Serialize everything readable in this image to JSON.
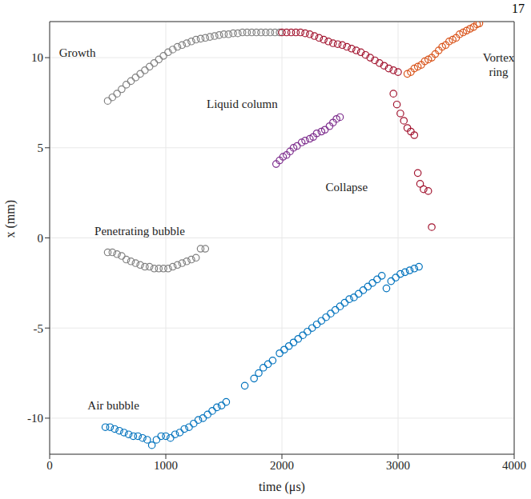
{
  "page_number": "17",
  "chart_data": {
    "type": "scatter",
    "x_label": "time (μs)",
    "y_label": "x (mm)",
    "xlim": [
      0,
      4000
    ],
    "xticks": [
      0,
      1000,
      2000,
      3000,
      4000
    ],
    "ylim": [
      -12,
      12
    ],
    "yticks": [
      -10,
      -5,
      0,
      5,
      10
    ],
    "grid": true,
    "marker": "circle",
    "series": [
      {
        "name": "Growth",
        "color": "#808080",
        "x": [
          500,
          540,
          580,
          620,
          660,
          700,
          740,
          780,
          820,
          860,
          900,
          940,
          980,
          1020,
          1060,
          1100,
          1140,
          1180,
          1220,
          1260,
          1300,
          1340,
          1380,
          1420,
          1460,
          1500,
          1540,
          1580,
          1620,
          1660,
          1700,
          1740,
          1780,
          1820,
          1860,
          1900,
          1940,
          1980
        ],
        "values": [
          7.6,
          7.8,
          8.0,
          8.25,
          8.5,
          8.7,
          8.9,
          9.1,
          9.3,
          9.5,
          9.7,
          9.9,
          10.1,
          10.3,
          10.45,
          10.6,
          10.7,
          10.8,
          10.9,
          11.0,
          11.05,
          11.1,
          11.15,
          11.2,
          11.25,
          11.3,
          11.3,
          11.35,
          11.35,
          11.4,
          11.4,
          11.4,
          11.4,
          11.4,
          11.4,
          11.4,
          11.4,
          11.4
        ]
      },
      {
        "name": "Collapse",
        "color": "#a2142f",
        "x": [
          2000,
          2040,
          2080,
          2120,
          2160,
          2200,
          2240,
          2280,
          2320,
          2360,
          2400,
          2440,
          2480,
          2520,
          2560,
          2600,
          2640,
          2680,
          2720,
          2760,
          2800,
          2840,
          2880,
          2920,
          2960,
          3000,
          2960,
          2990,
          3020,
          3050,
          3080,
          3110,
          3140,
          3170,
          3190,
          3220,
          3260,
          3290
        ],
        "values": [
          11.4,
          11.4,
          11.4,
          11.4,
          11.4,
          11.35,
          11.3,
          11.2,
          11.1,
          11.0,
          10.9,
          10.8,
          10.75,
          10.7,
          10.6,
          10.5,
          10.4,
          10.3,
          10.15,
          10.0,
          9.85,
          9.7,
          9.55,
          9.4,
          9.3,
          9.2,
          8.0,
          7.4,
          6.9,
          6.5,
          6.1,
          5.9,
          5.7,
          3.6,
          3.0,
          2.7,
          2.6,
          0.6
        ]
      },
      {
        "name": "Liquid column",
        "color": "#7e2f8e",
        "x": [
          1950,
          1980,
          2010,
          2040,
          2070,
          2100,
          2130,
          2170,
          2200,
          2240,
          2270,
          2300,
          2340,
          2370,
          2410,
          2440,
          2470,
          2500
        ],
        "values": [
          4.1,
          4.3,
          4.5,
          4.6,
          4.8,
          5.0,
          5.1,
          5.3,
          5.4,
          5.5,
          5.6,
          5.8,
          5.9,
          6.0,
          6.2,
          6.4,
          6.6,
          6.7
        ]
      },
      {
        "name": "Vortex ring",
        "color": "#d95319",
        "x": [
          3080,
          3110,
          3140,
          3170,
          3200,
          3230,
          3260,
          3290,
          3320,
          3350,
          3380,
          3410,
          3440,
          3470,
          3500,
          3530,
          3560,
          3590,
          3620,
          3650,
          3680,
          3700
        ],
        "values": [
          9.1,
          9.2,
          9.4,
          9.5,
          9.6,
          9.8,
          9.9,
          10.0,
          10.2,
          10.4,
          10.6,
          10.7,
          10.9,
          11.0,
          11.1,
          11.3,
          11.4,
          11.5,
          11.6,
          11.7,
          11.85,
          11.9
        ]
      },
      {
        "name": "Penetrating bubble",
        "color": "#808080",
        "x": [
          500,
          540,
          580,
          620,
          660,
          700,
          740,
          780,
          820,
          860,
          900,
          940,
          980,
          1020,
          1060,
          1100,
          1140,
          1180,
          1220,
          1260,
          1300,
          1340
        ],
        "values": [
          -0.8,
          -0.8,
          -0.9,
          -1.0,
          -1.2,
          -1.3,
          -1.4,
          -1.5,
          -1.6,
          -1.6,
          -1.7,
          -1.7,
          -1.7,
          -1.7,
          -1.6,
          -1.5,
          -1.4,
          -1.3,
          -1.2,
          -1.1,
          -0.6,
          -0.6
        ]
      },
      {
        "name": "Air bubble",
        "color": "#0072bd",
        "x": [
          480,
          520,
          560,
          600,
          640,
          680,
          720,
          760,
          800,
          840,
          880,
          920,
          960,
          1000,
          1040,
          1080,
          1120,
          1160,
          1200,
          1240,
          1280,
          1320,
          1360,
          1400,
          1440,
          1480,
          1520,
          1680,
          1760,
          1800,
          1840,
          1880,
          1920,
          1980,
          2020,
          2060,
          2100,
          2140,
          2180,
          2220,
          2260,
          2300,
          2340,
          2380,
          2420,
          2460,
          2500,
          2540,
          2580,
          2620,
          2660,
          2700,
          2740,
          2780,
          2820,
          2860,
          2900,
          2940,
          2980,
          3020,
          3060,
          3100,
          3140,
          3180
        ],
        "values": [
          -10.5,
          -10.5,
          -10.6,
          -10.7,
          -10.8,
          -10.9,
          -11.0,
          -11.0,
          -11.1,
          -11.2,
          -11.5,
          -11.2,
          -11.0,
          -11.0,
          -11.1,
          -10.9,
          -10.8,
          -10.6,
          -10.5,
          -10.3,
          -10.1,
          -10.0,
          -9.8,
          -9.6,
          -9.4,
          -9.3,
          -9.1,
          -8.2,
          -7.8,
          -7.5,
          -7.2,
          -7.0,
          -6.8,
          -6.4,
          -6.2,
          -6.0,
          -5.8,
          -5.6,
          -5.4,
          -5.2,
          -5.0,
          -4.8,
          -4.6,
          -4.4,
          -4.2,
          -4.0,
          -3.8,
          -3.6,
          -3.4,
          -3.3,
          -3.1,
          -2.9,
          -2.7,
          -2.5,
          -2.3,
          -2.1,
          -2.8,
          -2.4,
          -2.2,
          -2.0,
          -1.9,
          -1.8,
          -1.7,
          -1.6
        ]
      }
    ]
  }
}
